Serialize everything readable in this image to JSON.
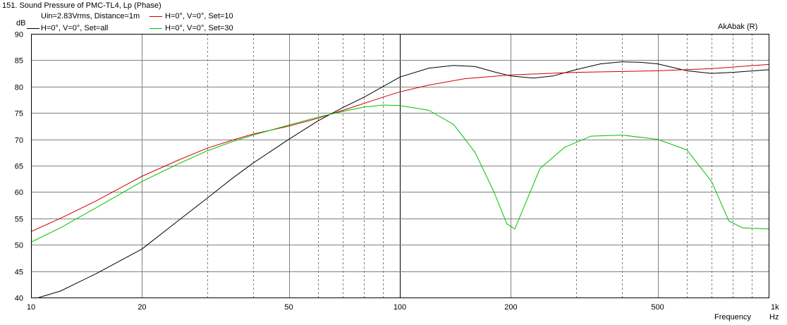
{
  "window": {
    "title": "151. Sound Pressure of PMC-TL4, Lp (Phase)",
    "stimulus": "Uin=2.83Vrms, Distance=1m",
    "brand": "AkAbak (R)"
  },
  "colors": {
    "background": "#ffffff",
    "grid": "#808080",
    "set_all": "#000000",
    "set_10": "#cc0000",
    "set_30": "#00c000"
  },
  "chart_data": {
    "type": "line",
    "xscale": "log",
    "xlabel": "Frequency",
    "xunit": "Hz",
    "ylabel": "dB",
    "xlim": [
      10,
      1000
    ],
    "ylim": [
      40,
      90
    ],
    "grid": true,
    "legend": "top-left",
    "x_ticks": [
      {
        "value": 10,
        "label": "10"
      },
      {
        "value": 20,
        "label": "20"
      },
      {
        "value": 50,
        "label": "50"
      },
      {
        "value": 100,
        "label": "100"
      },
      {
        "value": 200,
        "label": "200"
      },
      {
        "value": 500,
        "label": "500"
      },
      {
        "value": 1000,
        "label": "1k"
      }
    ],
    "y_ticks": [
      40,
      45,
      50,
      55,
      60,
      65,
      70,
      75,
      80,
      85,
      90
    ],
    "series": [
      {
        "name": "H=0°, V=0°, Set=all",
        "color": "#000000",
        "points": [
          [
            10.5,
            39.5
          ],
          [
            12,
            41.2
          ],
          [
            15,
            44.5
          ],
          [
            20,
            49.2
          ],
          [
            25,
            54.5
          ],
          [
            30,
            58.8
          ],
          [
            35,
            62.5
          ],
          [
            40,
            65.5
          ],
          [
            50,
            70.0
          ],
          [
            60,
            73.5
          ],
          [
            70,
            76.0
          ],
          [
            80,
            78.0
          ],
          [
            90,
            80.0
          ],
          [
            100,
            81.8
          ],
          [
            120,
            83.5
          ],
          [
            140,
            84.0
          ],
          [
            160,
            83.8
          ],
          [
            180,
            82.8
          ],
          [
            200,
            82.0
          ],
          [
            230,
            81.6
          ],
          [
            260,
            82.0
          ],
          [
            300,
            83.2
          ],
          [
            350,
            84.3
          ],
          [
            400,
            84.7
          ],
          [
            450,
            84.6
          ],
          [
            500,
            84.3
          ],
          [
            600,
            83.0
          ],
          [
            700,
            82.5
          ],
          [
            800,
            82.7
          ],
          [
            1000,
            83.2
          ]
        ]
      },
      {
        "name": "H=0°, V=0°, Set=10",
        "color": "#cc0000",
        "points": [
          [
            10,
            52.5
          ],
          [
            12,
            55.0
          ],
          [
            15,
            58.3
          ],
          [
            20,
            63.0
          ],
          [
            25,
            66.0
          ],
          [
            30,
            68.3
          ],
          [
            35,
            69.8
          ],
          [
            40,
            71.0
          ],
          [
            50,
            72.5
          ],
          [
            60,
            74.0
          ],
          [
            70,
            75.5
          ],
          [
            80,
            76.8
          ],
          [
            90,
            78.0
          ],
          [
            100,
            79.0
          ],
          [
            120,
            80.3
          ],
          [
            150,
            81.5
          ],
          [
            200,
            82.2
          ],
          [
            300,
            82.7
          ],
          [
            500,
            83.0
          ],
          [
            700,
            83.4
          ],
          [
            1000,
            84.2
          ]
        ]
      },
      {
        "name": "H=0°, V=0°, Set=30",
        "color": "#00c000",
        "points": [
          [
            10,
            50.5
          ],
          [
            12,
            53.2
          ],
          [
            15,
            57.0
          ],
          [
            20,
            62.0
          ],
          [
            25,
            65.3
          ],
          [
            30,
            67.8
          ],
          [
            35,
            69.5
          ],
          [
            40,
            70.8
          ],
          [
            50,
            72.7
          ],
          [
            60,
            74.2
          ],
          [
            70,
            75.3
          ],
          [
            80,
            76.1
          ],
          [
            90,
            76.5
          ],
          [
            100,
            76.4
          ],
          [
            120,
            75.5
          ],
          [
            140,
            72.8
          ],
          [
            160,
            67.5
          ],
          [
            180,
            60.0
          ],
          [
            195,
            54.0
          ],
          [
            205,
            53.0
          ],
          [
            215,
            56.5
          ],
          [
            240,
            64.5
          ],
          [
            280,
            68.5
          ],
          [
            330,
            70.6
          ],
          [
            400,
            70.8
          ],
          [
            500,
            70.0
          ],
          [
            600,
            68.0
          ],
          [
            700,
            62.0
          ],
          [
            780,
            54.5
          ],
          [
            850,
            53.2
          ],
          [
            1000,
            53.0
          ]
        ]
      }
    ]
  }
}
